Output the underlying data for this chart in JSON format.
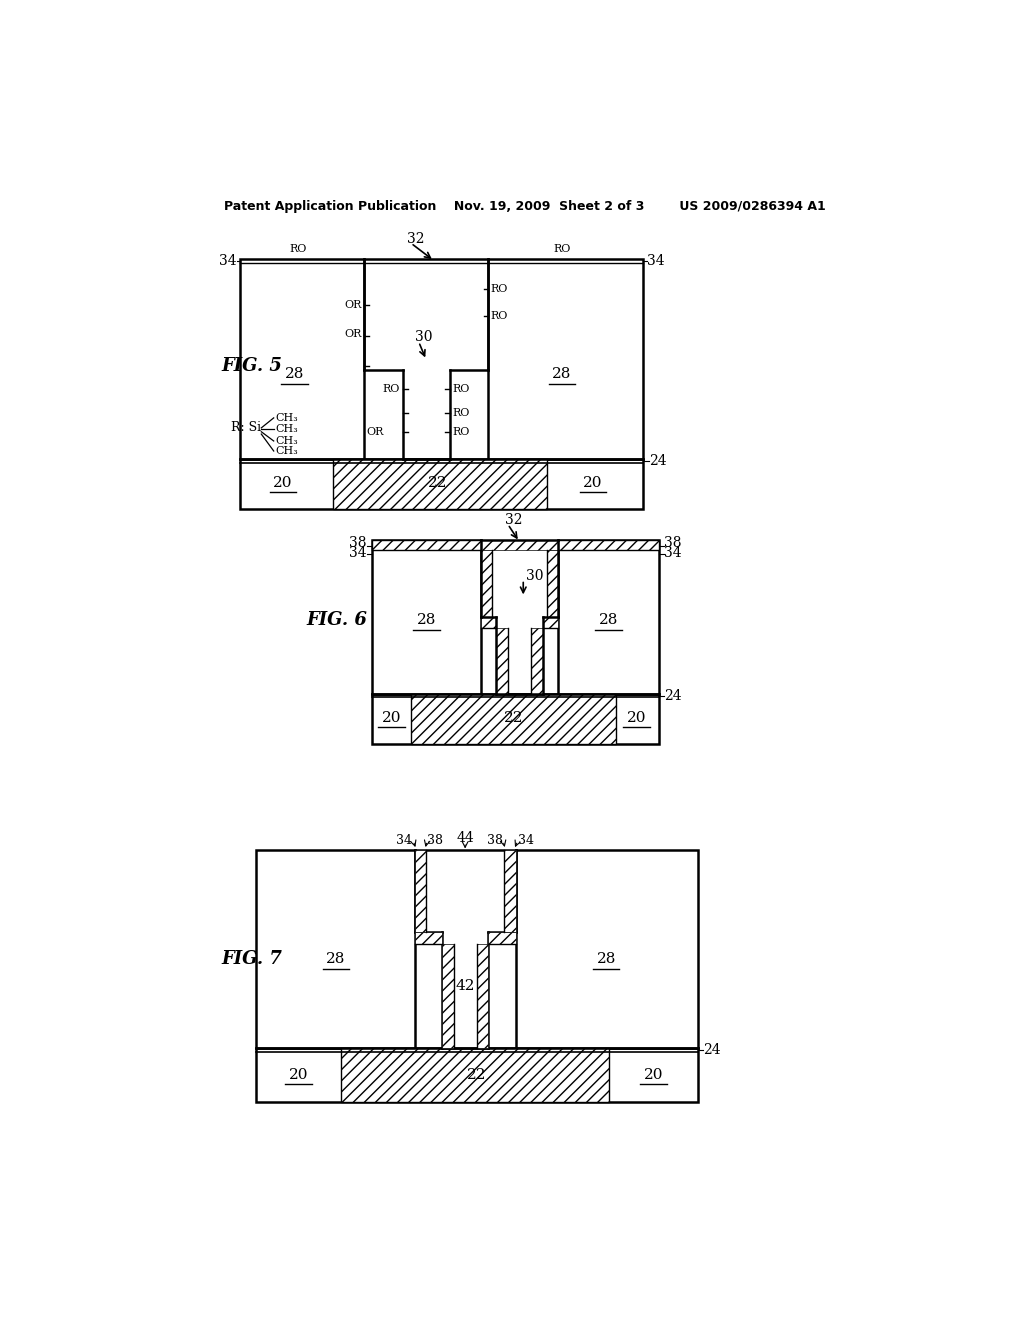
{
  "bg": "#ffffff",
  "header": "Patent Application Publication    Nov. 19, 2009  Sheet 2 of 3        US 2009/0286394 A1",
  "fig5_label": "FIG. 5",
  "fig6_label": "FIG. 6",
  "fig7_label": "FIG. 7"
}
